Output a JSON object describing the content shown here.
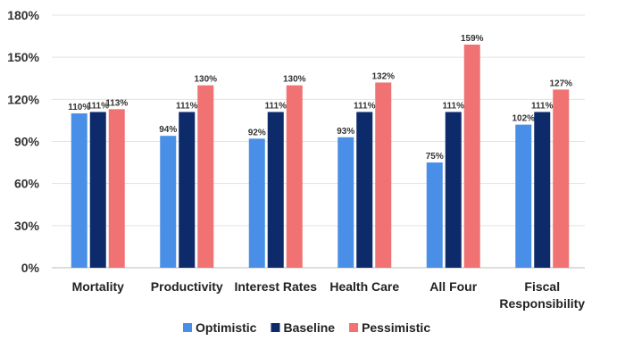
{
  "chart_data": {
    "type": "bar",
    "categories": [
      "Mortality",
      "Productivity",
      "Interest Rates",
      "Health Care",
      "All Four",
      "Fiscal Responsibility"
    ],
    "series": [
      {
        "name": "Optimistic",
        "values": [
          110,
          94,
          92,
          93,
          75,
          102
        ],
        "color": "#4a8fe7"
      },
      {
        "name": "Baseline",
        "values": [
          111,
          111,
          111,
          111,
          111,
          111
        ],
        "color": "#0d2a6b"
      },
      {
        "name": "Pessimistic",
        "values": [
          113,
          130,
          130,
          132,
          159,
          127
        ],
        "color": "#f07272"
      }
    ],
    "ylim": [
      0,
      180
    ],
    "yticks": [
      0,
      30,
      60,
      90,
      120,
      150,
      180
    ],
    "ytick_format": "%",
    "grid": true,
    "legend": "bottom"
  }
}
